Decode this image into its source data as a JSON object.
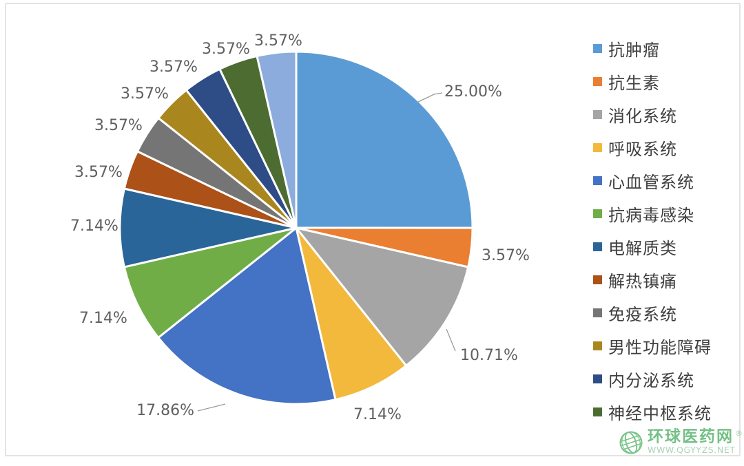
{
  "chart_data": {
    "type": "pie",
    "title": "",
    "legend_position": "right",
    "direction": "clockwise",
    "start_angle_deg": 0,
    "value_unit": "percent",
    "slices": [
      {
        "category": "抗肿瘤",
        "value": 25.0,
        "label": "25.00%",
        "color": "#5B9BD5"
      },
      {
        "category": "抗生素",
        "value": 3.57,
        "label": "3.57%",
        "color": "#EA7E31"
      },
      {
        "category": "消化系统",
        "value": 10.71,
        "label": "10.71%",
        "color": "#A5A5A5"
      },
      {
        "category": "呼吸系统",
        "value": 7.14,
        "label": "7.14%",
        "color": "#F2B93C"
      },
      {
        "category": "心血管系统",
        "value": 17.86,
        "label": "17.86%",
        "color": "#4472C4"
      },
      {
        "category": "抗病毒感染",
        "value": 7.14,
        "label": "7.14%",
        "color": "#70AD47"
      },
      {
        "category": "电解质类",
        "value": 7.14,
        "label": "7.14%",
        "color": "#2A6599"
      },
      {
        "category": "解热镇痛",
        "value": 3.57,
        "label": "3.57%",
        "color": "#AC5117"
      },
      {
        "category": "免疫系统",
        "value": 3.57,
        "label": "3.57%",
        "color": "#757575"
      },
      {
        "category": "男性功能障碍",
        "value": 3.57,
        "label": "3.57%",
        "color": "#AA871E"
      },
      {
        "category": "内分泌系统",
        "value": 3.57,
        "label": "3.57%",
        "color": "#2E4C85"
      },
      {
        "category": "神经中枢系统",
        "value": 3.57,
        "label": "3.57%",
        "color": "#4C6C31"
      },
      {
        "category": "",
        "value": 3.57,
        "label": "3.57%",
        "color": "#8BACDC"
      }
    ]
  },
  "legend": {
    "items": [
      {
        "label": "抗肿瘤",
        "color": "#5B9BD5"
      },
      {
        "label": "抗生素",
        "color": "#EA7E31"
      },
      {
        "label": "消化系统",
        "color": "#A5A5A5"
      },
      {
        "label": "呼吸系统",
        "color": "#F2B93C"
      },
      {
        "label": "心血管系统",
        "color": "#4472C4"
      },
      {
        "label": "抗病毒感染",
        "color": "#70AD47"
      },
      {
        "label": "电解质类",
        "color": "#2A6599"
      },
      {
        "label": "解热镇痛",
        "color": "#AC5117"
      },
      {
        "label": "免疫系统",
        "color": "#757575"
      },
      {
        "label": "男性功能障碍",
        "color": "#AA871E"
      },
      {
        "label": "内分泌系统",
        "color": "#2E4C85"
      },
      {
        "label": "神经中枢系统",
        "color": "#4C6C31"
      }
    ]
  },
  "watermark": {
    "name": "环球医药网",
    "registered_mark": "®",
    "url": "WWW.QGYYZS.NET",
    "brand_color": "#74C086"
  },
  "colors": {
    "background": "#FFFFFF",
    "frame_border": "#E3E3E3",
    "percent_label_text": "#5F5F5F",
    "legend_text": "#3F3F3F",
    "leader_line": "#9B9B9B",
    "slice_border": "#FFFFFF"
  }
}
